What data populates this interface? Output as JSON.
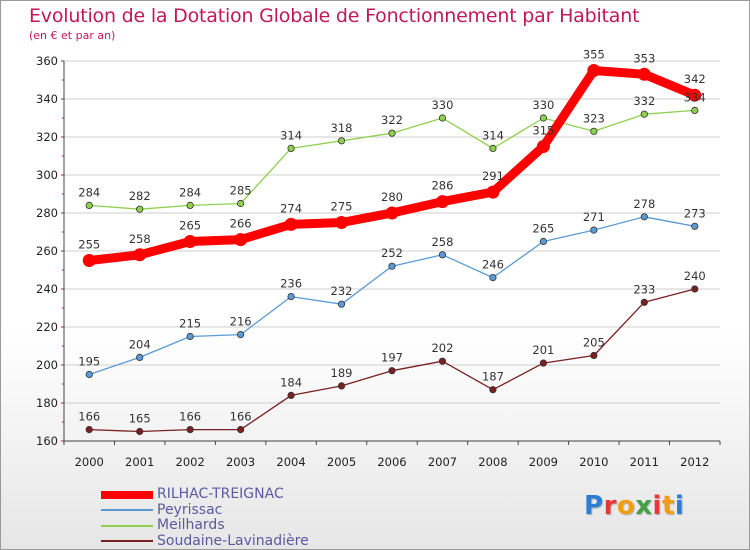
{
  "title": "Evolution de la Dotation Globale de Fonctionnement par Habitant",
  "subtitle": "(en € et par an)",
  "brand": {
    "text": "Proxiti",
    "letter_colors": [
      "#2a7fd4",
      "#e53935",
      "#f39c12",
      "#43a047",
      "#e53935",
      "#f39c12",
      "#2a7fd4"
    ]
  },
  "chart_data": {
    "type": "line",
    "title": "Evolution de la Dotation Globale de Fonctionnement par Habitant",
    "subtitle": "(en € et par an)",
    "xlabel": "",
    "ylabel": "",
    "x": [
      "2000",
      "2001",
      "2002",
      "2003",
      "2004",
      "2005",
      "2006",
      "2007",
      "2008",
      "2009",
      "2010",
      "2011",
      "2012"
    ],
    "ylim": [
      160,
      360
    ],
    "yticks": [
      "160",
      "180",
      "200",
      "220",
      "240",
      "260",
      "280",
      "300",
      "320",
      "340",
      "360"
    ],
    "grid": true,
    "legend_position": "bottom-left",
    "series": [
      {
        "name": "RILHAC-TREIGNAC",
        "color": "#ff0000",
        "emphasis": true,
        "values": [
          255,
          258,
          265,
          266,
          274,
          275,
          280,
          286,
          291,
          315,
          355,
          353,
          342
        ],
        "labels": [
          "255",
          "258",
          "265",
          "266",
          "274",
          "275",
          "280",
          "286",
          "291",
          "315",
          "355",
          "353",
          "342"
        ]
      },
      {
        "name": "Peyrissac",
        "color": "#5b9bd5",
        "emphasis": false,
        "values": [
          195,
          204,
          215,
          216,
          236,
          232,
          252,
          258,
          246,
          265,
          271,
          278,
          273
        ],
        "labels": [
          "195",
          "204",
          "215",
          "216",
          "236",
          "232",
          "252",
          "258",
          "246",
          "265",
          "271",
          "278",
          "273"
        ]
      },
      {
        "name": "Meilhards",
        "color": "#8fd14f",
        "emphasis": false,
        "values": [
          284,
          282,
          284,
          285,
          314,
          318,
          322,
          330,
          314,
          330,
          323,
          332,
          334
        ],
        "labels": [
          "284",
          "282",
          "284",
          "285",
          "314",
          "318",
          "322",
          "330",
          "314",
          "330",
          "323",
          "332",
          "334"
        ]
      },
      {
        "name": "Soudaine-Lavinadière",
        "color": "#7a2020",
        "emphasis": false,
        "values": [
          166,
          165,
          166,
          166,
          184,
          189,
          197,
          202,
          187,
          201,
          205,
          233,
          240
        ],
        "labels": [
          "166",
          "165",
          "166",
          "166",
          "184",
          "189",
          "197",
          "202",
          "187",
          "201",
          "205",
          "233",
          "240"
        ]
      }
    ]
  }
}
